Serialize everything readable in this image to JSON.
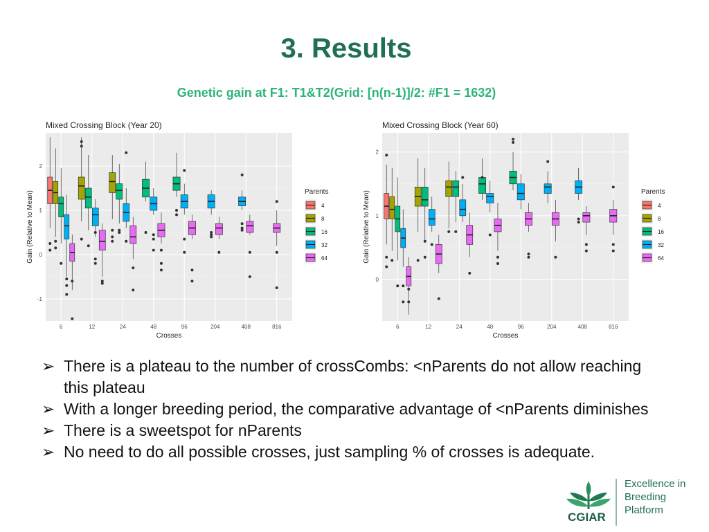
{
  "slide": {
    "title": "3. Results",
    "subtitle": "Genetic gain at F1: T1&T2(Grid: [n(n-1)]/2: #F1 = 1632)"
  },
  "bullets": [
    "There is a plateau to the number of crossCombs: <nParents do not allow reaching this plateau",
    "With a longer breeding period, the comparative advantage of <nParents diminishes",
    "There is a sweetspot for nParents",
    "No need to do all possible crosses, just sampling % of crosses is adequate."
  ],
  "logo": {
    "org": "CGIAR",
    "lines": [
      "Excellence in",
      "Breeding",
      "Platform"
    ]
  },
  "chart_data": [
    {
      "type": "box",
      "title": "Mixed Crossing Block (Year 20)",
      "xlabel": "Crosses",
      "ylabel": "Gain (Relative to Mean)",
      "categories": [
        "6",
        "12",
        "24",
        "48",
        "96",
        "204",
        "408",
        "816"
      ],
      "yticks": [
        -1,
        0,
        1,
        2
      ],
      "ylim": [
        -1.5,
        2.75
      ],
      "legend_title": "Parents",
      "legend_position": "right",
      "grid": true,
      "series": [
        {
          "name": "4",
          "color": "#F8766D",
          "boxes": [
            {
              "cat": "6",
              "min": 0.6,
              "q1": 1.15,
              "median": 1.45,
              "q3": 1.75,
              "max": 2.65,
              "outliers": [
                0.25,
                0.1
              ]
            }
          ]
        },
        {
          "name": "8",
          "color": "#A3A500",
          "boxes": [
            {
              "cat": "6",
              "min": 0.4,
              "q1": 1.15,
              "median": 1.4,
              "q3": 1.65,
              "max": 2.4,
              "outliers": [
                0.3,
                0.15
              ]
            },
            {
              "cat": "12",
              "min": 0.75,
              "q1": 1.25,
              "median": 1.55,
              "q3": 1.75,
              "max": 2.65,
              "outliers": [
                2.55,
                2.45,
                0.35
              ]
            },
            {
              "cat": "24",
              "min": 0.8,
              "q1": 1.4,
              "median": 1.65,
              "q3": 1.85,
              "max": 2.25,
              "outliers": [
                0.55,
                0.4,
                0.3
              ]
            }
          ]
        },
        {
          "name": "16",
          "color": "#00BF7D",
          "boxes": [
            {
              "cat": "6",
              "min": 0.25,
              "q1": 0.85,
              "median": 1.15,
              "q3": 1.3,
              "max": 1.95,
              "outliers": [
                -0.2
              ]
            },
            {
              "cat": "12",
              "min": 0.55,
              "q1": 1.05,
              "median": 1.3,
              "q3": 1.5,
              "max": 2.25,
              "outliers": [
                0.2
              ]
            },
            {
              "cat": "24",
              "min": 0.7,
              "q1": 1.25,
              "median": 1.45,
              "q3": 1.6,
              "max": 2.05,
              "outliers": [
                0.55,
                0.5
              ]
            },
            {
              "cat": "48",
              "min": 1.2,
              "q1": 1.3,
              "median": 1.5,
              "q3": 1.7,
              "max": 2.1,
              "outliers": [
                0.5
              ]
            },
            {
              "cat": "96",
              "min": 1.3,
              "q1": 1.45,
              "median": 1.6,
              "q3": 1.75,
              "max": 2.3,
              "outliers": [
                1.0,
                0.9
              ]
            }
          ]
        },
        {
          "name": "32",
          "color": "#00B0F6",
          "boxes": [
            {
              "cat": "6",
              "min": -0.5,
              "q1": 0.35,
              "median": 0.65,
              "q3": 0.9,
              "max": 1.35,
              "outliers": [
                -0.55,
                -0.7,
                -0.9
              ]
            },
            {
              "cat": "12",
              "min": 0.4,
              "q1": 0.65,
              "median": 0.9,
              "q3": 1.05,
              "max": 1.25,
              "outliers": [
                0.5,
                -0.1,
                -0.2
              ]
            },
            {
              "cat": "24",
              "min": 0.6,
              "q1": 0.75,
              "median": 0.95,
              "q3": 1.15,
              "max": 1.5,
              "outliers": [
                2.3,
                0.3
              ]
            },
            {
              "cat": "48",
              "min": 0.9,
              "q1": 1.0,
              "median": 1.15,
              "q3": 1.3,
              "max": 1.5,
              "outliers": [
                0.45,
                0.35,
                0.1
              ]
            },
            {
              "cat": "96",
              "min": 0.9,
              "q1": 1.05,
              "median": 1.2,
              "q3": 1.35,
              "max": 1.6,
              "outliers": [
                1.9,
                0.35,
                0.05
              ]
            },
            {
              "cat": "204",
              "min": 0.9,
              "q1": 1.05,
              "median": 1.2,
              "q3": 1.35,
              "max": 1.45,
              "outliers": [
                0.5,
                0.45,
                0.4
              ]
            },
            {
              "cat": "408",
              "min": 1.0,
              "q1": 1.1,
              "median": 1.2,
              "q3": 1.3,
              "max": 1.45,
              "outliers": [
                1.8,
                0.7,
                0.6,
                0.55
              ]
            }
          ]
        },
        {
          "name": "64",
          "color": "#E76BF3",
          "boxes": [
            {
              "cat": "6",
              "min": -0.8,
              "q1": -0.15,
              "median": 0.05,
              "q3": 0.25,
              "max": 0.45,
              "outliers": [
                -0.6,
                -1.45
              ]
            },
            {
              "cat": "12",
              "min": -0.5,
              "q1": 0.1,
              "median": 0.3,
              "q3": 0.55,
              "max": 0.7,
              "outliers": [
                -0.6,
                -0.65
              ]
            },
            {
              "cat": "24",
              "min": -0.1,
              "q1": 0.25,
              "median": 0.4,
              "q3": 0.65,
              "max": 0.85,
              "outliers": [
                -0.3,
                -0.8
              ]
            },
            {
              "cat": "48",
              "min": 0.25,
              "q1": 0.4,
              "median": 0.55,
              "q3": 0.7,
              "max": 0.95,
              "outliers": [
                0.1,
                -0.2,
                -0.35
              ]
            },
            {
              "cat": "96",
              "min": 0.35,
              "q1": 0.45,
              "median": 0.6,
              "q3": 0.75,
              "max": 0.9,
              "outliers": [
                -0.35,
                -0.6
              ]
            },
            {
              "cat": "204",
              "min": 0.35,
              "q1": 0.45,
              "median": 0.6,
              "q3": 0.7,
              "max": 0.85,
              "outliers": [
                0.05
              ]
            },
            {
              "cat": "408",
              "min": 0.45,
              "q1": 0.5,
              "median": 0.65,
              "q3": 0.75,
              "max": 0.9,
              "outliers": [
                0.05,
                -0.5
              ]
            },
            {
              "cat": "816",
              "min": 0.2,
              "q1": 0.5,
              "median": 0.6,
              "q3": 0.7,
              "max": 1.0,
              "outliers": [
                1.2,
                0.05,
                -0.75
              ]
            }
          ]
        }
      ]
    },
    {
      "type": "box",
      "title": "Mixed Crossing Block (Year 60)",
      "xlabel": "Crosses",
      "ylabel": "Gain (Relative to Mean)",
      "categories": [
        "6",
        "12",
        "24",
        "48",
        "96",
        "204",
        "408",
        "816"
      ],
      "yticks": [
        0,
        1,
        2
      ],
      "ylim": [
        -0.65,
        2.3
      ],
      "legend_title": "Parents",
      "legend_position": "right",
      "grid": true,
      "series": [
        {
          "name": "4",
          "color": "#F8766D",
          "boxes": [
            {
              "cat": "6",
              "min": 0.55,
              "q1": 0.95,
              "median": 1.15,
              "q3": 1.35,
              "max": 1.8,
              "outliers": [
                1.95,
                0.35,
                0.2
              ]
            }
          ]
        },
        {
          "name": "8",
          "color": "#A3A500",
          "boxes": [
            {
              "cat": "6",
              "min": 0.45,
              "q1": 0.95,
              "median": 1.1,
              "q3": 1.3,
              "max": 1.75,
              "outliers": [
                0.3
              ]
            },
            {
              "cat": "12",
              "min": 0.75,
              "q1": 1.15,
              "median": 1.3,
              "q3": 1.45,
              "max": 1.9,
              "outliers": [
                0.3
              ]
            },
            {
              "cat": "24",
              "min": 0.8,
              "q1": 1.3,
              "median": 1.45,
              "q3": 1.55,
              "max": 1.85,
              "outliers": [
                0.75
              ]
            }
          ]
        },
        {
          "name": "16",
          "color": "#00BF7D",
          "boxes": [
            {
              "cat": "6",
              "min": 0.3,
              "q1": 0.75,
              "median": 0.95,
              "q3": 1.15,
              "max": 1.6,
              "outliers": [
                -0.1
              ]
            },
            {
              "cat": "12",
              "min": 0.6,
              "q1": 1.15,
              "median": 1.25,
              "q3": 1.45,
              "max": 1.75,
              "outliers": [
                0.6,
                0.35
              ]
            },
            {
              "cat": "24",
              "min": 0.9,
              "q1": 1.3,
              "median": 1.45,
              "q3": 1.55,
              "max": 1.7,
              "outliers": [
                0.75
              ]
            },
            {
              "cat": "48",
              "min": 1.25,
              "q1": 1.35,
              "median": 1.5,
              "q3": 1.6,
              "max": 1.9,
              "outliers": [
                1.6
              ]
            },
            {
              "cat": "96",
              "min": 1.4,
              "q1": 1.5,
              "median": 1.6,
              "q3": 1.7,
              "max": 2.0,
              "outliers": [
                2.2,
                2.15
              ]
            }
          ]
        },
        {
          "name": "32",
          "color": "#00B0F6",
          "boxes": [
            {
              "cat": "6",
              "min": 0.2,
              "q1": 0.5,
              "median": 0.65,
              "q3": 0.8,
              "max": 1.1,
              "outliers": [
                -0.1,
                -0.35
              ]
            },
            {
              "cat": "12",
              "min": 0.75,
              "q1": 0.85,
              "median": 0.95,
              "q3": 1.1,
              "max": 1.3,
              "outliers": [
                0.55
              ]
            },
            {
              "cat": "24",
              "min": 0.9,
              "q1": 1.0,
              "median": 1.1,
              "q3": 1.25,
              "max": 1.5,
              "outliers": [
                1.6
              ]
            },
            {
              "cat": "48",
              "min": 1.05,
              "q1": 1.2,
              "median": 1.3,
              "q3": 1.35,
              "max": 1.55,
              "outliers": [
                0.7
              ]
            },
            {
              "cat": "96",
              "min": 1.1,
              "q1": 1.25,
              "median": 1.35,
              "q3": 1.5,
              "max": 1.65,
              "outliers": []
            },
            {
              "cat": "204",
              "min": 1.2,
              "q1": 1.35,
              "median": 1.45,
              "q3": 1.5,
              "max": 1.7,
              "outliers": [
                1.85
              ]
            },
            {
              "cat": "408",
              "min": 1.25,
              "q1": 1.35,
              "median": 1.45,
              "q3": 1.55,
              "max": 1.75,
              "outliers": [
                0.95,
                0.9
              ]
            }
          ]
        },
        {
          "name": "64",
          "color": "#E76BF3",
          "boxes": [
            {
              "cat": "6",
              "min": -0.55,
              "q1": -0.1,
              "median": 0.05,
              "q3": 0.2,
              "max": 0.35,
              "outliers": [
                -0.15,
                -0.35
              ]
            },
            {
              "cat": "12",
              "min": 0.1,
              "q1": 0.25,
              "median": 0.4,
              "q3": 0.55,
              "max": 0.7,
              "outliers": [
                -0.3
              ]
            },
            {
              "cat": "24",
              "min": 0.35,
              "q1": 0.55,
              "median": 0.7,
              "q3": 0.85,
              "max": 1.05,
              "outliers": [
                0.1
              ]
            },
            {
              "cat": "48",
              "min": 0.45,
              "q1": 0.75,
              "median": 0.85,
              "q3": 0.95,
              "max": 1.2,
              "outliers": [
                0.35,
                0.25
              ]
            },
            {
              "cat": "96",
              "min": 0.75,
              "q1": 0.85,
              "median": 0.95,
              "q3": 1.05,
              "max": 1.2,
              "outliers": [
                0.4,
                0.35
              ]
            },
            {
              "cat": "204",
              "min": 0.6,
              "q1": 0.85,
              "median": 0.95,
              "q3": 1.05,
              "max": 1.25,
              "outliers": [
                0.35
              ]
            },
            {
              "cat": "408",
              "min": 0.7,
              "q1": 0.9,
              "median": 1.0,
              "q3": 1.05,
              "max": 1.15,
              "outliers": [
                0.55,
                0.45
              ]
            },
            {
              "cat": "816",
              "min": 0.7,
              "q1": 0.9,
              "median": 1.0,
              "q3": 1.1,
              "max": 1.25,
              "outliers": [
                1.45,
                0.55,
                0.45
              ]
            }
          ]
        }
      ]
    }
  ]
}
